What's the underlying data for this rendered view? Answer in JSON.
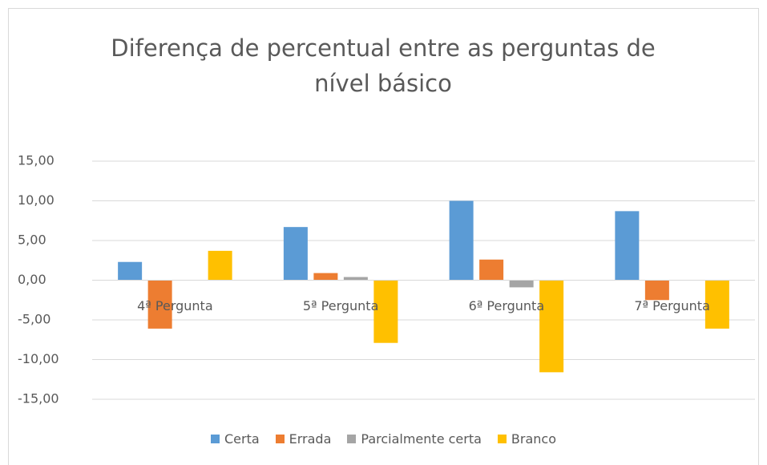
{
  "chart_data": {
    "type": "bar",
    "title": "Diferença de percentual entre as perguntas de nível básico",
    "categories": [
      "4ª Pergunta",
      "5ª Pergunta",
      "6ª Pergunta",
      "7ª Pergunta"
    ],
    "series": [
      {
        "name": "Certa",
        "color": "#5b9bd5",
        "values": [
          2.3,
          6.7,
          10.0,
          8.7
        ]
      },
      {
        "name": "Errada",
        "color": "#ed7d31",
        "values": [
          -6.1,
          0.9,
          2.6,
          -2.5
        ]
      },
      {
        "name": "Parcialmente certa",
        "color": "#a5a5a5",
        "values": [
          0,
          0.4,
          -0.9,
          0
        ]
      },
      {
        "name": "Branco",
        "color": "#ffc000",
        "values": [
          3.7,
          -7.9,
          -11.6,
          -6.1
        ]
      }
    ],
    "ylim": [
      -15,
      15
    ],
    "yticks": [
      {
        "value": 15,
        "label": "15,00"
      },
      {
        "value": 10,
        "label": "10,00"
      },
      {
        "value": 5,
        "label": "5,00"
      },
      {
        "value": 0,
        "label": "0,00"
      },
      {
        "value": -5,
        "label": "-5,00"
      },
      {
        "value": -10,
        "label": "-10,00"
      },
      {
        "value": -15,
        "label": "-15,00"
      }
    ],
    "grid": true,
    "legend": "bottom"
  }
}
